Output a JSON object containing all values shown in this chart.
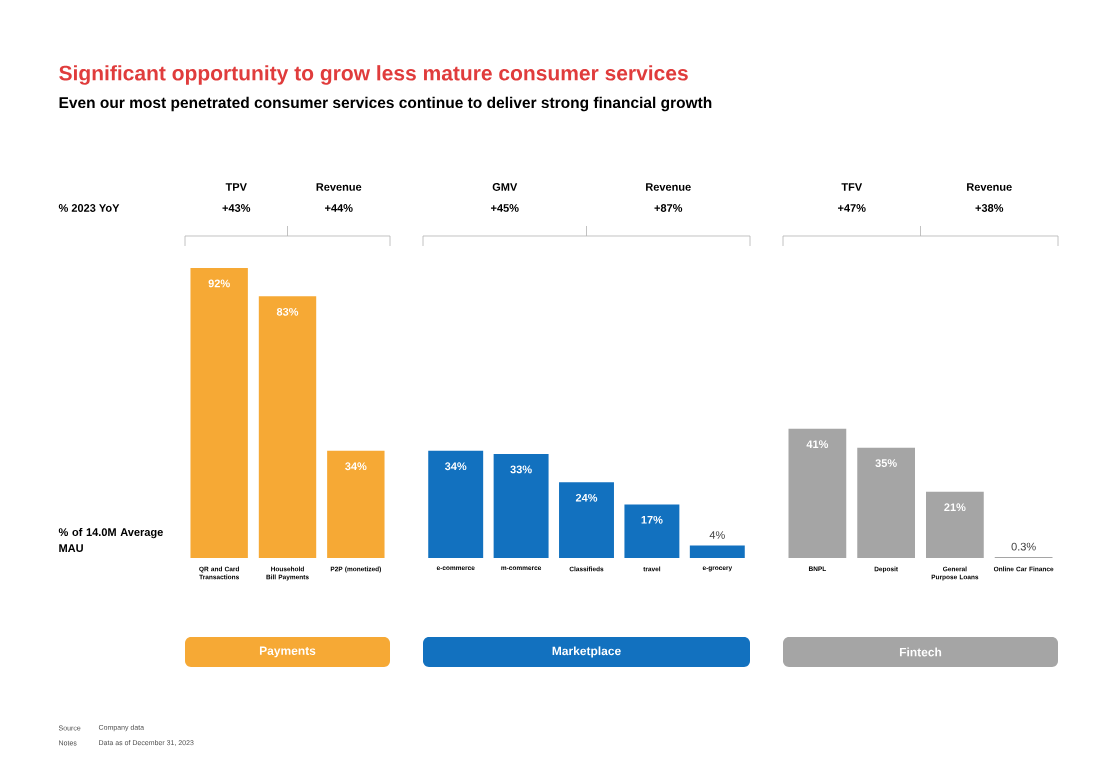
{
  "chart_data": [
    {
      "type": "other",
      "title": "Significant opportunity to grow less mature consumer services",
      "subtitle": "Even our most penetrated consumer services continue to deliver strong financial growth",
      "annotations": [
        "% 2023 YoY",
        "% of 14.0M Average MAU",
        "Source",
        "Company data",
        "Notes",
        "Data as of December 31, 2023"
      ]
    },
    {
      "type": "bar",
      "title": "Payments",
      "annotations": [
        "TPV",
        "+43%",
        "Revenue",
        "+44%"
      ],
      "categories": [
        "QR and Card Transactions",
        "Household Bill Payments",
        "P2P (monetized)"
      ],
      "values": [
        92,
        83,
        34
      ],
      "value_labels": [
        "92%",
        "83%",
        "34%"
      ],
      "color": "#f6a935"
    },
    {
      "type": "bar",
      "title": "Marketplace",
      "annotations": [
        "GMV",
        "+45%",
        "Revenue",
        "+87%"
      ],
      "categories": [
        "e-commerce",
        "m-commerce",
        "Classifieds",
        "travel",
        "e-grocery"
      ],
      "values": [
        34,
        33,
        24,
        17,
        4
      ],
      "value_labels": [
        "34%",
        "33%",
        "24%",
        "17%",
        "4%"
      ],
      "color": "#1271bf"
    },
    {
      "type": "bar",
      "title": "Fintech",
      "annotations": [
        "TFV",
        "+47%",
        "Revenue",
        "+38%"
      ],
      "categories": [
        "BNPL",
        "Deposit",
        "General Purpose Loans",
        "Online Car Finance"
      ],
      "values": [
        41,
        35,
        21,
        0.3
      ],
      "value_labels": [
        "41%",
        "35%",
        "21%",
        "0.3%"
      ],
      "color": "#a5a5a5"
    }
  ]
}
